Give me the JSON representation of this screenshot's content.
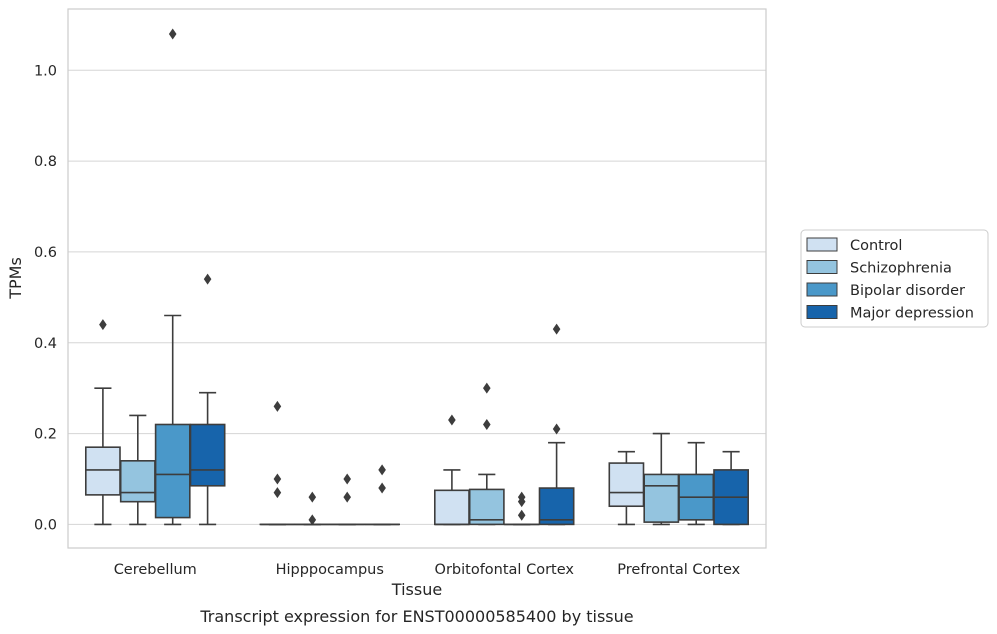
{
  "chart_data": {
    "type": "box",
    "caption": "Transcript expression for ENST00000585400 by tissue",
    "xlabel": "Tissue",
    "ylabel": "TPMs",
    "ylim": [
      -0.052,
      1.135
    ],
    "yticks": [
      "0.0",
      "0.2",
      "0.4",
      "0.6",
      "0.8",
      "1.0"
    ],
    "grid": true,
    "legend_position": "right",
    "categories": [
      "Cerebellum",
      "Hipppocampus",
      "Orbitofontal Cortex",
      "Prefrontal Cortex"
    ],
    "series": [
      {
        "name": "Control",
        "color": "#d0e1f2",
        "boxes": [
          {
            "whislo": 0.0,
            "q1": 0.065,
            "med": 0.12,
            "q3": 0.17,
            "whishi": 0.3,
            "fliers": [
              0.44
            ]
          },
          {
            "whislo": 0.0,
            "q1": 0.0,
            "med": 0.0,
            "q3": 0.0,
            "whishi": 0.0,
            "fliers": [
              0.26,
              0.1,
              0.07
            ]
          },
          {
            "whislo": 0.0,
            "q1": 0.0,
            "med": 0.0,
            "q3": 0.075,
            "whishi": 0.12,
            "fliers": [
              0.23
            ]
          },
          {
            "whislo": 0.0,
            "q1": 0.04,
            "med": 0.07,
            "q3": 0.135,
            "whishi": 0.16,
            "fliers": []
          }
        ]
      },
      {
        "name": "Schizophrenia",
        "color": "#94c4df",
        "boxes": [
          {
            "whislo": 0.0,
            "q1": 0.05,
            "med": 0.07,
            "q3": 0.14,
            "whishi": 0.24,
            "fliers": []
          },
          {
            "whislo": 0.0,
            "q1": 0.0,
            "med": 0.0,
            "q3": 0.0,
            "whishi": 0.0,
            "fliers": [
              0.06,
              0.01
            ]
          },
          {
            "whislo": 0.0,
            "q1": 0.0,
            "med": 0.01,
            "q3": 0.077,
            "whishi": 0.11,
            "fliers": [
              0.3,
              0.22
            ]
          },
          {
            "whislo": 0.0,
            "q1": 0.005,
            "med": 0.085,
            "q3": 0.11,
            "whishi": 0.2,
            "fliers": []
          }
        ]
      },
      {
        "name": "Bipolar disorder",
        "color": "#4a98c9",
        "boxes": [
          {
            "whislo": 0.0,
            "q1": 0.015,
            "med": 0.11,
            "q3": 0.22,
            "whishi": 0.46,
            "fliers": [
              1.08
            ]
          },
          {
            "whislo": 0.0,
            "q1": 0.0,
            "med": 0.0,
            "q3": 0.0,
            "whishi": 0.0,
            "fliers": [
              0.1,
              0.06
            ]
          },
          {
            "whislo": 0.0,
            "q1": 0.0,
            "med": 0.0,
            "q3": 0.0,
            "whishi": 0.0,
            "fliers": [
              0.06,
              0.05,
              0.02
            ]
          },
          {
            "whislo": 0.0,
            "q1": 0.01,
            "med": 0.06,
            "q3": 0.11,
            "whishi": 0.18,
            "fliers": []
          }
        ]
      },
      {
        "name": "Major depression",
        "color": "#1764ab",
        "boxes": [
          {
            "whislo": 0.0,
            "q1": 0.085,
            "med": 0.12,
            "q3": 0.22,
            "whishi": 0.29,
            "fliers": [
              0.54
            ]
          },
          {
            "whislo": 0.0,
            "q1": 0.0,
            "med": 0.0,
            "q3": 0.0,
            "whishi": 0.0,
            "fliers": [
              0.12,
              0.08
            ]
          },
          {
            "whislo": 0.0,
            "q1": 0.0,
            "med": 0.01,
            "q3": 0.08,
            "whishi": 0.18,
            "fliers": [
              0.43,
              0.21
            ]
          },
          {
            "whislo": 0.0,
            "q1": 0.0,
            "med": 0.06,
            "q3": 0.12,
            "whishi": 0.16,
            "fliers": []
          }
        ]
      }
    ]
  }
}
